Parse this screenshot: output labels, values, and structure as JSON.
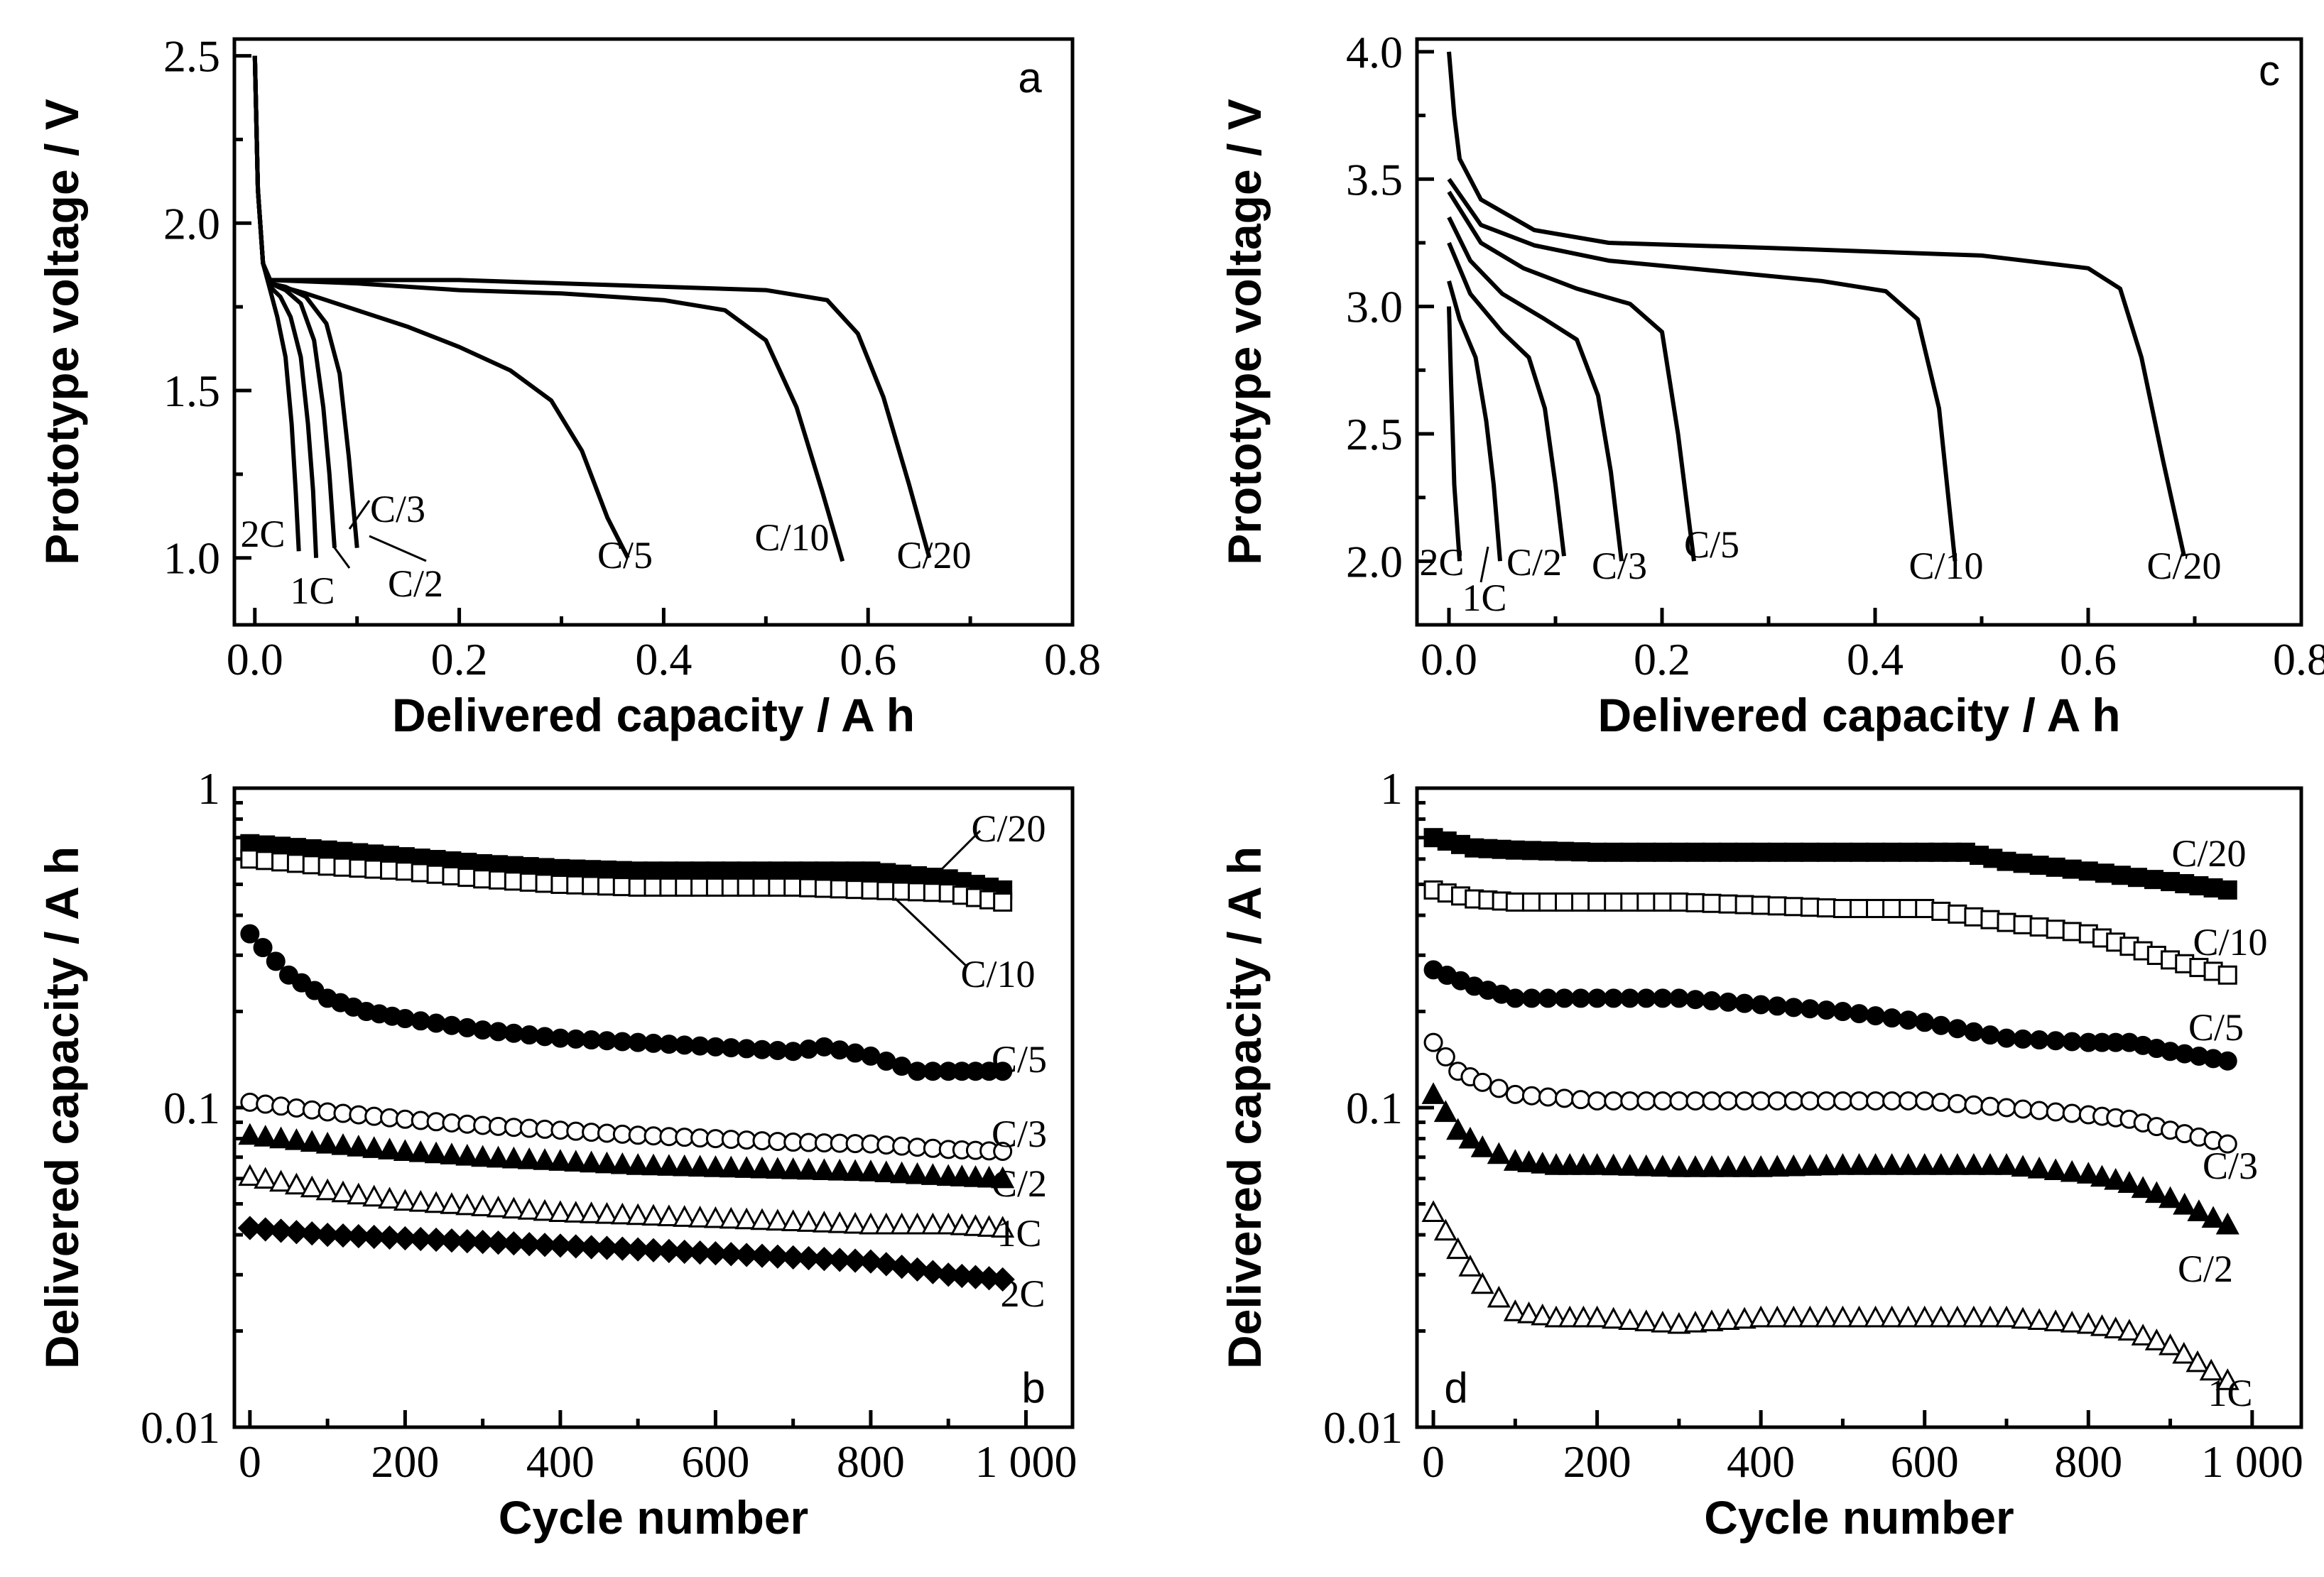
{
  "chart_data": [
    {
      "panel": "a",
      "type": "line",
      "xlabel": "Delivered capacity / A h",
      "ylabel": "Prototype voltage / V",
      "xlim": [
        -0.02,
        0.8
      ],
      "ylim": [
        0.8,
        2.55
      ],
      "xticks": [
        "0.0",
        "0.2",
        "0.4",
        "0.6",
        "0.8"
      ],
      "yticks": [
        "1.0",
        "1.5",
        "2.0",
        "2.5"
      ],
      "yscale": "linear",
      "series": [
        {
          "name": "2C",
          "x": [
            0,
            0.003,
            0.008,
            0.015,
            0.022,
            0.03,
            0.036,
            0.04,
            0.043
          ],
          "y": [
            2.5,
            2.1,
            1.88,
            1.8,
            1.72,
            1.6,
            1.4,
            1.2,
            1.02
          ]
        },
        {
          "name": "1C",
          "x": [
            0,
            0.003,
            0.008,
            0.015,
            0.025,
            0.035,
            0.045,
            0.052,
            0.057,
            0.06
          ],
          "y": [
            2.5,
            2.1,
            1.88,
            1.81,
            1.78,
            1.72,
            1.6,
            1.4,
            1.2,
            1.0
          ]
        },
        {
          "name": "C/2",
          "x": [
            0,
            0.003,
            0.008,
            0.015,
            0.03,
            0.045,
            0.058,
            0.067,
            0.073,
            0.078
          ],
          "y": [
            2.5,
            2.1,
            1.88,
            1.82,
            1.8,
            1.76,
            1.65,
            1.45,
            1.25,
            1.03
          ]
        },
        {
          "name": "C/3",
          "x": [
            0,
            0.003,
            0.008,
            0.015,
            0.03,
            0.05,
            0.07,
            0.083,
            0.092,
            0.1
          ],
          "y": [
            2.5,
            2.1,
            1.88,
            1.82,
            1.81,
            1.78,
            1.7,
            1.55,
            1.3,
            1.03
          ]
        },
        {
          "name": "C/5",
          "x": [
            0,
            0.003,
            0.008,
            0.015,
            0.05,
            0.1,
            0.15,
            0.2,
            0.25,
            0.29,
            0.32,
            0.345,
            0.365
          ],
          "y": [
            2.5,
            2.1,
            1.88,
            1.82,
            1.79,
            1.74,
            1.69,
            1.63,
            1.56,
            1.47,
            1.32,
            1.12,
            1.0
          ]
        },
        {
          "name": "C/10",
          "x": [
            0,
            0.003,
            0.008,
            0.015,
            0.1,
            0.2,
            0.3,
            0.4,
            0.46,
            0.5,
            0.53,
            0.555,
            0.575
          ],
          "y": [
            2.5,
            2.1,
            1.88,
            1.83,
            1.82,
            1.8,
            1.79,
            1.77,
            1.74,
            1.65,
            1.45,
            1.2,
            0.99
          ]
        },
        {
          "name": "C/20",
          "x": [
            0,
            0.003,
            0.008,
            0.015,
            0.1,
            0.2,
            0.3,
            0.4,
            0.5,
            0.56,
            0.59,
            0.615,
            0.64,
            0.66
          ],
          "y": [
            2.5,
            2.1,
            1.88,
            1.83,
            1.83,
            1.83,
            1.82,
            1.81,
            1.8,
            1.77,
            1.67,
            1.48,
            1.22,
            1.0
          ]
        }
      ],
      "labels": [
        "2C",
        "1C",
        "C/2",
        "C/3",
        "C/5",
        "C/10",
        "C/20"
      ]
    },
    {
      "panel": "b",
      "type": "scatter",
      "xlabel": "Cycle number",
      "ylabel": "Delivered capacity / A h",
      "xlim": [
        -20,
        1060
      ],
      "ylim": [
        0.01,
        1
      ],
      "yscale": "log",
      "xticks": [
        "0",
        "200",
        "400",
        "600",
        "800",
        "1 000"
      ],
      "yticks": [
        "0.01",
        "0.1",
        "1"
      ],
      "series": [
        {
          "name": "C/20",
          "marker": "filled-square",
          "x": [
            0,
            100,
            200,
            300,
            400,
            500,
            600,
            700,
            800,
            900,
            970
          ],
          "y": [
            0.67,
            0.64,
            0.61,
            0.58,
            0.56,
            0.55,
            0.55,
            0.55,
            0.55,
            0.52,
            0.48
          ]
        },
        {
          "name": "C/10",
          "marker": "open-square",
          "x": [
            0,
            100,
            200,
            300,
            400,
            500,
            600,
            700,
            800,
            900,
            970
          ],
          "y": [
            0.6,
            0.57,
            0.55,
            0.52,
            0.5,
            0.49,
            0.49,
            0.49,
            0.48,
            0.47,
            0.44
          ]
        },
        {
          "name": "C/5",
          "marker": "filled-circle",
          "x": [
            0,
            50,
            100,
            150,
            200,
            300,
            400,
            500,
            600,
            700,
            740,
            800,
            860,
            900,
            970
          ],
          "y": [
            0.35,
            0.26,
            0.22,
            0.2,
            0.19,
            0.175,
            0.165,
            0.16,
            0.155,
            0.15,
            0.155,
            0.145,
            0.13,
            0.13,
            0.13
          ]
        },
        {
          "name": "C/3",
          "marker": "open-circle",
          "x": [
            0,
            100,
            200,
            300,
            400,
            500,
            600,
            700,
            800,
            900,
            970
          ],
          "y": [
            0.104,
            0.097,
            0.092,
            0.088,
            0.085,
            0.082,
            0.08,
            0.078,
            0.077,
            0.074,
            0.073
          ]
        },
        {
          "name": "C/2",
          "marker": "filled-triangle",
          "x": [
            0,
            100,
            200,
            300,
            400,
            500,
            600,
            700,
            800,
            900,
            970
          ],
          "y": [
            0.082,
            0.077,
            0.073,
            0.07,
            0.068,
            0.066,
            0.065,
            0.064,
            0.063,
            0.061,
            0.06
          ]
        },
        {
          "name": "1C",
          "marker": "open-triangle",
          "x": [
            0,
            100,
            200,
            300,
            400,
            500,
            600,
            700,
            800,
            900,
            970
          ],
          "y": [
            0.061,
            0.055,
            0.051,
            0.049,
            0.047,
            0.046,
            0.045,
            0.044,
            0.043,
            0.043,
            0.042
          ]
        },
        {
          "name": "2C",
          "marker": "filled-diamond",
          "x": [
            0,
            100,
            200,
            300,
            400,
            500,
            600,
            700,
            800,
            900,
            970
          ],
          "y": [
            0.042,
            0.04,
            0.039,
            0.038,
            0.037,
            0.036,
            0.035,
            0.034,
            0.033,
            0.03,
            0.029
          ]
        }
      ],
      "labels": [
        "C/20",
        "C/10",
        "C/5",
        "C/3",
        "C/2",
        "1C",
        "2C"
      ]
    },
    {
      "panel": "c",
      "type": "line",
      "xlabel": "Delivered capacity / A h",
      "ylabel": "Prototype voltage / V",
      "xlim": [
        -0.03,
        0.8
      ],
      "ylim": [
        1.75,
        4.05
      ],
      "xticks": [
        "0.0",
        "0.2",
        "0.4",
        "0.6",
        "0.8"
      ],
      "yticks": [
        "2.0",
        "2.5",
        "3.0",
        "3.5",
        "4.0"
      ],
      "yscale": "linear",
      "series": [
        {
          "name": "2C",
          "x": [
            0,
            0.002,
            0.005,
            0.01
          ],
          "y": [
            3.0,
            2.7,
            2.3,
            2.0
          ]
        },
        {
          "name": "1C",
          "x": [
            0,
            0.01,
            0.025,
            0.035,
            0.042,
            0.048
          ],
          "y": [
            3.1,
            2.95,
            2.8,
            2.55,
            2.3,
            2.0
          ]
        },
        {
          "name": "C/2",
          "x": [
            0,
            0.02,
            0.05,
            0.075,
            0.09,
            0.1,
            0.108
          ],
          "y": [
            3.25,
            3.05,
            2.9,
            2.8,
            2.6,
            2.3,
            2.02
          ]
        },
        {
          "name": "C/3",
          "x": [
            0,
            0.02,
            0.05,
            0.09,
            0.12,
            0.14,
            0.152,
            0.162
          ],
          "y": [
            3.35,
            3.18,
            3.05,
            2.95,
            2.87,
            2.65,
            2.35,
            2.0
          ]
        },
        {
          "name": "C/5",
          "x": [
            0,
            0.03,
            0.07,
            0.12,
            0.17,
            0.2,
            0.215,
            0.23
          ],
          "y": [
            3.45,
            3.25,
            3.15,
            3.07,
            3.01,
            2.9,
            2.5,
            2.0
          ]
        },
        {
          "name": "C/10",
          "x": [
            0,
            0.03,
            0.08,
            0.15,
            0.25,
            0.35,
            0.41,
            0.44,
            0.46,
            0.475
          ],
          "y": [
            3.5,
            3.32,
            3.24,
            3.18,
            3.14,
            3.1,
            3.06,
            2.95,
            2.6,
            2.0
          ]
        },
        {
          "name": "C/20",
          "x": [
            0,
            0.005,
            0.01,
            0.03,
            0.08,
            0.15,
            0.3,
            0.5,
            0.6,
            0.63,
            0.65,
            0.67,
            0.69
          ],
          "y": [
            4.0,
            3.75,
            3.58,
            3.42,
            3.3,
            3.25,
            3.23,
            3.2,
            3.15,
            3.07,
            2.8,
            2.4,
            2.02
          ]
        }
      ],
      "labels": [
        "2C",
        "1C",
        "C/2",
        "C/3",
        "C/5",
        "C/10",
        "C/20"
      ]
    },
    {
      "panel": "d",
      "type": "scatter",
      "xlabel": "Cycle number",
      "ylabel": "Delivered capacity / A h",
      "xlim": [
        -20,
        1060
      ],
      "ylim": [
        0.01,
        1
      ],
      "yscale": "log",
      "xticks": [
        "0",
        "200",
        "400",
        "600",
        "800",
        "1 000"
      ],
      "yticks": [
        "0.01",
        "0.1",
        "1"
      ],
      "series": [
        {
          "name": "C/20",
          "marker": "filled-square",
          "x": [
            0,
            50,
            100,
            200,
            300,
            400,
            500,
            600,
            650,
            700,
            800,
            900,
            970
          ],
          "y": [
            0.7,
            0.65,
            0.64,
            0.63,
            0.63,
            0.63,
            0.63,
            0.63,
            0.63,
            0.59,
            0.55,
            0.51,
            0.48
          ]
        },
        {
          "name": "C/10",
          "marker": "open-square",
          "x": [
            0,
            50,
            100,
            200,
            300,
            400,
            500,
            600,
            700,
            800,
            850,
            900,
            970
          ],
          "y": [
            0.48,
            0.45,
            0.44,
            0.44,
            0.44,
            0.43,
            0.42,
            0.42,
            0.38,
            0.35,
            0.32,
            0.29,
            0.26
          ]
        },
        {
          "name": "C/5",
          "marker": "filled-circle",
          "x": [
            0,
            50,
            100,
            200,
            300,
            400,
            500,
            600,
            700,
            800,
            850,
            900,
            970
          ],
          "y": [
            0.27,
            0.24,
            0.22,
            0.22,
            0.22,
            0.21,
            0.2,
            0.185,
            0.165,
            0.16,
            0.16,
            0.15,
            0.14
          ]
        },
        {
          "name": "C/3",
          "marker": "open-circle",
          "x": [
            0,
            30,
            60,
            100,
            200,
            300,
            400,
            500,
            600,
            700,
            800,
            850,
            900,
            970
          ],
          "y": [
            0.16,
            0.13,
            0.12,
            0.11,
            0.105,
            0.105,
            0.105,
            0.105,
            0.105,
            0.1,
            0.095,
            0.092,
            0.085,
            0.077
          ]
        },
        {
          "name": "C/2",
          "marker": "filled-triangle",
          "x": [
            0,
            30,
            60,
            100,
            150,
            200,
            300,
            400,
            500,
            600,
            700,
            800,
            850,
            900,
            970
          ],
          "y": [
            0.11,
            0.085,
            0.075,
            0.068,
            0.066,
            0.066,
            0.065,
            0.065,
            0.066,
            0.066,
            0.066,
            0.062,
            0.058,
            0.052,
            0.043
          ]
        },
        {
          "name": "1C",
          "marker": "open-triangle",
          "x": [
            0,
            30,
            60,
            100,
            150,
            200,
            300,
            400,
            500,
            600,
            700,
            800,
            850,
            900,
            950,
            970
          ],
          "y": [
            0.047,
            0.036,
            0.028,
            0.023,
            0.022,
            0.022,
            0.021,
            0.022,
            0.022,
            0.022,
            0.022,
            0.021,
            0.02,
            0.018,
            0.015,
            0.014
          ]
        }
      ],
      "labels": [
        "C/20",
        "C/10",
        "C/5",
        "C/3",
        "C/2",
        "1C"
      ]
    }
  ]
}
